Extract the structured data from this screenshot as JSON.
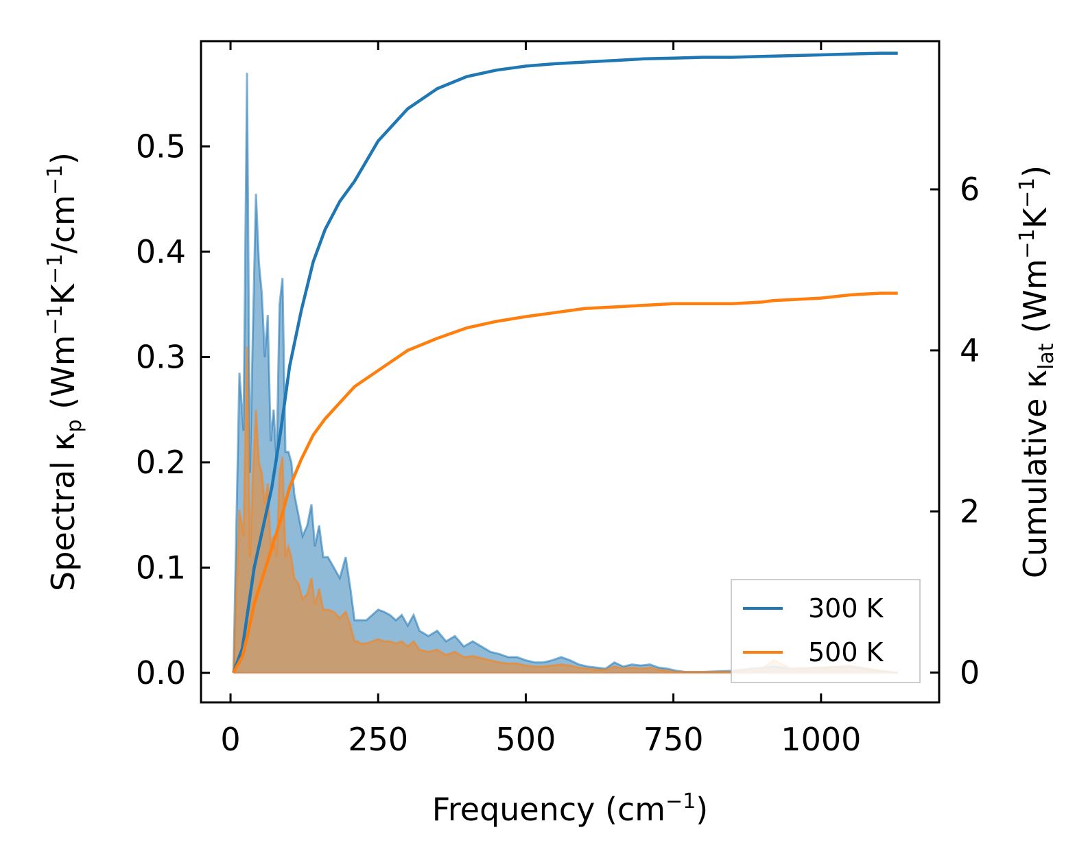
{
  "chart_data": {
    "type": "line+area",
    "xlabel": "Frequency (cm",
    "xlabel_sup": "−1",
    "xlabel_tail": ")",
    "ylabel_left_pre": "Spectral κ",
    "ylabel_left_sub": "p",
    "ylabel_left_mid1": " (Wm",
    "ylabel_left_sup1": "−1",
    "ylabel_left_mid2": "K",
    "ylabel_left_sup2": "−1",
    "ylabel_left_mid3": "/cm",
    "ylabel_left_sup3": "−1",
    "ylabel_left_tail": ")",
    "ylabel_right_pre": "Cumulative κ",
    "ylabel_right_sub": "lat",
    "ylabel_right_mid1": " (Wm",
    "ylabel_right_sup1": "−1",
    "ylabel_right_mid2": "K",
    "ylabel_right_sup2": "−1",
    "ylabel_right_tail": ")",
    "xlim": [
      -50,
      1200
    ],
    "ylim_left": [
      -0.028,
      0.6
    ],
    "ylim_right": [
      -0.37,
      7.84
    ],
    "x_ticks": [
      0,
      250,
      500,
      750,
      1000
    ],
    "x_tick_labels": [
      "0",
      "250",
      "500",
      "750",
      "1000"
    ],
    "y_left_ticks": [
      0.0,
      0.1,
      0.2,
      0.3,
      0.4,
      0.5
    ],
    "y_left_tick_labels": [
      "0.0",
      "0.1",
      "0.2",
      "0.3",
      "0.4",
      "0.5"
    ],
    "y_right_ticks": [
      0,
      2,
      4,
      6
    ],
    "y_right_tick_labels": [
      "0",
      "2",
      "4",
      "6"
    ],
    "legend": {
      "placement": "lower-right",
      "entries": [
        {
          "label": "300 K",
          "color": "#1f77b4"
        },
        {
          "label": "500 K",
          "color": "#ff7f0e"
        }
      ]
    },
    "series": [
      {
        "name": "300 K",
        "color": "#1f77b4",
        "fill_color": "#1f77b4",
        "spectral": {
          "x": [
            5,
            15,
            22,
            28,
            33,
            38,
            43,
            48,
            53,
            58,
            63,
            68,
            73,
            78,
            83,
            88,
            93,
            98,
            103,
            108,
            115,
            122,
            130,
            137,
            143,
            150,
            157,
            165,
            175,
            185,
            195,
            203,
            210,
            215,
            220,
            230,
            240,
            250,
            260,
            270,
            280,
            290,
            300,
            310,
            320,
            335,
            350,
            365,
            380,
            395,
            410,
            425,
            440,
            455,
            470,
            485,
            500,
            515,
            530,
            545,
            560,
            575,
            590,
            605,
            620,
            635,
            650,
            665,
            680,
            695,
            710,
            725,
            740,
            755,
            770,
            800,
            850,
            880,
            900,
            920,
            950,
            1000,
            1050,
            1100,
            1130
          ],
          "y": [
            0.0,
            0.285,
            0.23,
            0.57,
            0.19,
            0.33,
            0.455,
            0.39,
            0.36,
            0.3,
            0.34,
            0.22,
            0.25,
            0.2,
            0.35,
            0.375,
            0.21,
            0.21,
            0.2,
            0.17,
            0.15,
            0.13,
            0.14,
            0.16,
            0.12,
            0.14,
            0.11,
            0.11,
            0.1,
            0.09,
            0.11,
            0.08,
            0.05,
            0.05,
            0.05,
            0.05,
            0.055,
            0.06,
            0.058,
            0.055,
            0.05,
            0.055,
            0.045,
            0.055,
            0.04,
            0.035,
            0.04,
            0.03,
            0.035,
            0.025,
            0.03,
            0.025,
            0.02,
            0.018,
            0.015,
            0.015,
            0.012,
            0.01,
            0.01,
            0.012,
            0.015,
            0.012,
            0.008,
            0.006,
            0.005,
            0.004,
            0.01,
            0.006,
            0.008,
            0.007,
            0.008,
            0.005,
            0.004,
            0.002,
            0.001,
            0.001,
            0.002,
            0.004,
            0.005,
            0.006,
            0.004,
            0.005,
            0.006,
            0.002,
            0.0
          ]
        },
        "cumulative": {
          "x": [
            5,
            20,
            30,
            40,
            55,
            70,
            85,
            100,
            120,
            140,
            160,
            185,
            210,
            250,
            300,
            350,
            400,
            450,
            500,
            550,
            600,
            650,
            700,
            750,
            800,
            850,
            900,
            950,
            1000,
            1050,
            1100,
            1130
          ],
          "y": [
            0,
            0.3,
            0.8,
            1.3,
            1.8,
            2.3,
            3.0,
            3.8,
            4.5,
            5.1,
            5.5,
            5.85,
            6.1,
            6.6,
            7.0,
            7.25,
            7.4,
            7.48,
            7.53,
            7.56,
            7.58,
            7.6,
            7.62,
            7.63,
            7.64,
            7.64,
            7.65,
            7.66,
            7.67,
            7.68,
            7.69,
            7.69
          ]
        }
      },
      {
        "name": "500 K",
        "color": "#ff7f0e",
        "fill_color": "#ff7f0e",
        "spectral": {
          "x": [
            5,
            15,
            22,
            28,
            33,
            38,
            43,
            48,
            53,
            58,
            63,
            68,
            73,
            78,
            83,
            88,
            93,
            98,
            103,
            108,
            115,
            122,
            130,
            137,
            143,
            150,
            157,
            165,
            175,
            185,
            195,
            203,
            210,
            215,
            220,
            230,
            240,
            250,
            260,
            270,
            280,
            290,
            300,
            310,
            320,
            335,
            350,
            365,
            380,
            395,
            410,
            425,
            440,
            455,
            470,
            485,
            500,
            515,
            530,
            545,
            560,
            575,
            590,
            605,
            620,
            635,
            650,
            665,
            680,
            695,
            710,
            725,
            740,
            755,
            770,
            800,
            850,
            880,
            900,
            920,
            950,
            1000,
            1050,
            1100,
            1130
          ],
          "y": [
            0.0,
            0.155,
            0.13,
            0.31,
            0.11,
            0.19,
            0.25,
            0.2,
            0.19,
            0.16,
            0.18,
            0.12,
            0.13,
            0.11,
            0.19,
            0.205,
            0.11,
            0.12,
            0.11,
            0.09,
            0.085,
            0.07,
            0.075,
            0.09,
            0.065,
            0.08,
            0.06,
            0.06,
            0.058,
            0.052,
            0.058,
            0.045,
            0.03,
            0.03,
            0.028,
            0.028,
            0.03,
            0.032,
            0.03,
            0.03,
            0.028,
            0.03,
            0.025,
            0.03,
            0.022,
            0.02,
            0.022,
            0.017,
            0.02,
            0.015,
            0.016,
            0.014,
            0.012,
            0.01,
            0.009,
            0.009,
            0.007,
            0.006,
            0.006,
            0.007,
            0.008,
            0.007,
            0.005,
            0.004,
            0.003,
            0.003,
            0.006,
            0.004,
            0.005,
            0.004,
            0.005,
            0.003,
            0.002,
            0.001,
            0.001,
            0.001,
            0.001,
            0.003,
            0.004,
            0.012,
            0.004,
            0.005,
            0.007,
            0.002,
            0.0
          ]
        },
        "cumulative": {
          "x": [
            5,
            20,
            30,
            40,
            55,
            70,
            85,
            100,
            120,
            140,
            160,
            185,
            210,
            250,
            300,
            350,
            400,
            450,
            500,
            550,
            600,
            650,
            700,
            750,
            800,
            850,
            900,
            920,
            950,
            1000,
            1050,
            1100,
            1130
          ],
          "y": [
            0,
            0.2,
            0.5,
            0.85,
            1.2,
            1.55,
            1.9,
            2.3,
            2.65,
            2.95,
            3.15,
            3.35,
            3.55,
            3.75,
            4.0,
            4.15,
            4.28,
            4.36,
            4.42,
            4.47,
            4.52,
            4.54,
            4.56,
            4.58,
            4.58,
            4.58,
            4.6,
            4.62,
            4.63,
            4.65,
            4.69,
            4.71,
            4.71
          ]
        }
      }
    ]
  }
}
